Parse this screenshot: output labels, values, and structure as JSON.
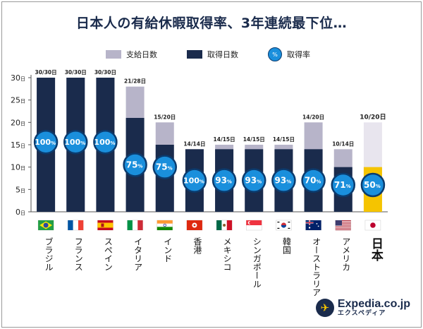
{
  "title": "日本人の有給休暇取得率、3年連続最下位…",
  "legend": {
    "granted": "支給日数",
    "taken": "取得日数",
    "rate_icon": "%",
    "rate": "取得率"
  },
  "colors": {
    "granted": "#b7b4c9",
    "taken": "#1a2b4c",
    "japan_granted": "#e8e5ee",
    "japan_taken": "#f5c400",
    "rate_circle": "#1a8fdc",
    "rate_ring": "#0b3b6e",
    "axis": "#555555"
  },
  "logo": {
    "brand": "Expedia.co.jp",
    "sub": "エクスペディア"
  },
  "chart_data": {
    "type": "bar",
    "y_unit": "日",
    "ylim": [
      0,
      30
    ],
    "yticks": [
      0,
      5,
      10,
      15,
      20,
      25,
      30
    ],
    "categories": [
      "ブラジル",
      "フランス",
      "スペイン",
      "イタリア",
      "インド",
      "香港",
      "メキシコ",
      "シンガポール",
      "韓国",
      "オーストラリア",
      "アメリカ",
      "日本"
    ],
    "flags": [
      "brazil-flag",
      "france-flag",
      "spain-flag",
      "italy-flag",
      "india-flag",
      "hong-kong-flag",
      "mexico-flag",
      "singapore-flag",
      "korea-flag",
      "australia-flag",
      "usa-flag",
      "japan-flag"
    ],
    "series": [
      {
        "name": "支給日数",
        "values": [
          30,
          30,
          30,
          28,
          20,
          14,
          15,
          15,
          15,
          20,
          14,
          20
        ]
      },
      {
        "name": "取得日数",
        "values": [
          30,
          30,
          30,
          21,
          15,
          14,
          14,
          14,
          14,
          14,
          10,
          10
        ]
      },
      {
        "name": "取得率",
        "values": [
          100,
          100,
          100,
          75,
          75,
          100,
          93,
          93,
          93,
          70,
          71,
          50
        ]
      }
    ],
    "top_labels": [
      "30/30日",
      "30/30日",
      "30/30日",
      "21/28日",
      "15/20日",
      "14/14日",
      "14/15日",
      "14/15日",
      "14/15日",
      "14/20日",
      "10/14日",
      "10/20日"
    ],
    "rate_labels": [
      "100%",
      "100%",
      "100%",
      "75%",
      "75%",
      "100%",
      "93%",
      "93%",
      "93%",
      "70%",
      "71%",
      "50%"
    ],
    "highlight": "日本"
  }
}
